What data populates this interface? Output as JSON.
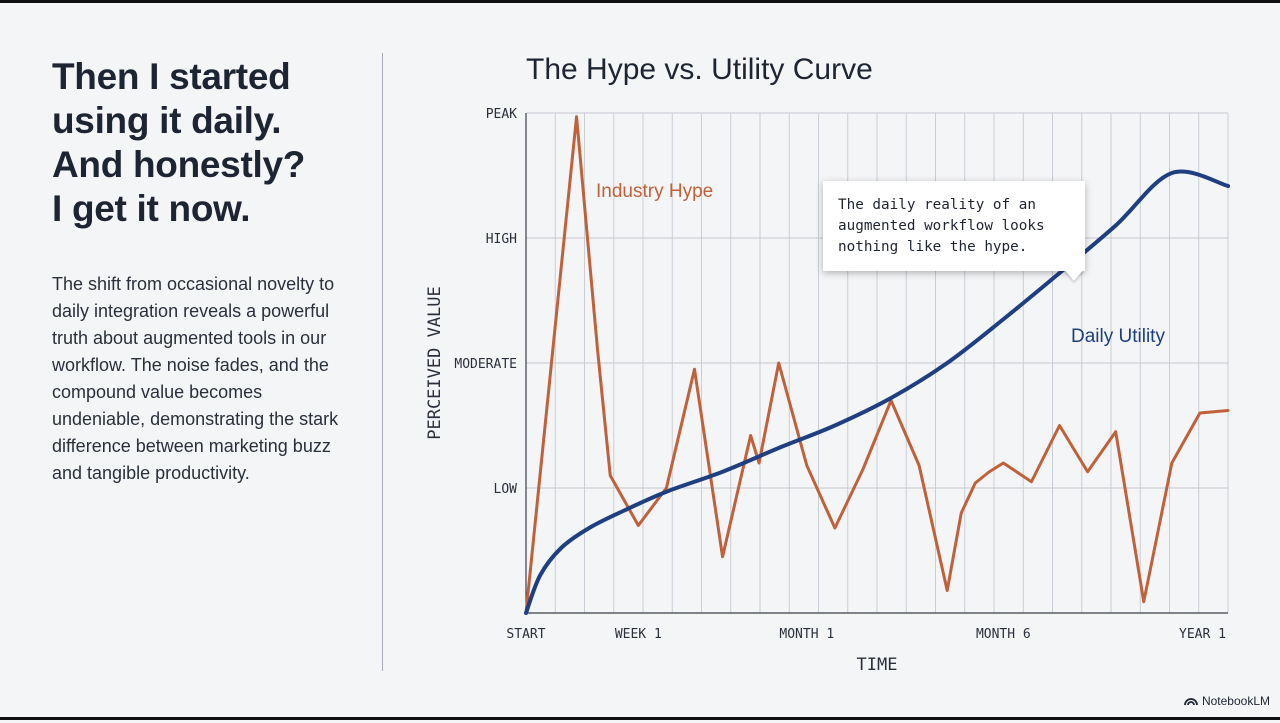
{
  "left_panel": {
    "headline_lines": [
      "Then I started",
      "using it daily.",
      "And honestly?",
      "I get it now."
    ],
    "body": "The shift from occasional novelty to daily integration reveals a powerful truth about augmented tools in our workflow. The noise fades, and the compound value becomes undeniable, demonstrating the stark difference between marketing buzz and tangible productivity."
  },
  "callout": {
    "lines": [
      "The daily reality of an",
      "augmented workflow looks",
      "nothing like the hype."
    ]
  },
  "brand": {
    "label": "NotebookLM"
  },
  "chart_data": {
    "type": "line",
    "title": "The Hype vs. Utility Curve",
    "xlabel": "TIME",
    "ylabel": "PERCEIVED VALUE",
    "xlim": [
      0,
      100
    ],
    "ylim": [
      0,
      4
    ],
    "x_ticks": [
      {
        "label": "START",
        "x": 0
      },
      {
        "label": "WEEK 1",
        "x": 16
      },
      {
        "label": "MONTH 1",
        "x": 40
      },
      {
        "label": "MONTH 6",
        "x": 68
      },
      {
        "label": "YEAR 1",
        "x": 100
      }
    ],
    "y_ticks": [
      {
        "label": "LOW",
        "y": 1
      },
      {
        "label": "MODERATE",
        "y": 2
      },
      {
        "label": "HIGH",
        "y": 3
      },
      {
        "label": "PEAK",
        "y": 4
      }
    ],
    "grid": true,
    "colors": {
      "hype": "#c0613b",
      "utility": "#1f3f80"
    },
    "series": [
      {
        "name": "Industry Hype",
        "x": [
          0,
          7.2,
          10.2,
          12,
          16,
          20,
          24,
          28,
          32,
          33.2,
          36,
          40,
          44,
          48,
          52,
          56,
          60,
          62,
          64,
          66,
          68,
          72,
          76,
          80,
          84,
          88,
          92,
          96,
          100
        ],
        "y": [
          0,
          3.97,
          2.1,
          1.1,
          0.7,
          1.0,
          1.95,
          0.45,
          1.42,
          1.2,
          2.0,
          1.18,
          0.68,
          1.15,
          1.7,
          1.18,
          0.18,
          0.8,
          1.04,
          1.13,
          1.2,
          1.05,
          1.5,
          1.13,
          1.45,
          0.09,
          1.2,
          1.6,
          1.62
        ]
      },
      {
        "name": "Daily Utility",
        "x": [
          0,
          2,
          5,
          9,
          14,
          20,
          28,
          36,
          44,
          52,
          60,
          68,
          76,
          84,
          92,
          100
        ],
        "y": [
          0,
          0.3,
          0.52,
          0.68,
          0.82,
          0.97,
          1.13,
          1.32,
          1.5,
          1.72,
          2.0,
          2.35,
          2.72,
          3.1,
          3.52,
          3.4
        ]
      }
    ]
  }
}
